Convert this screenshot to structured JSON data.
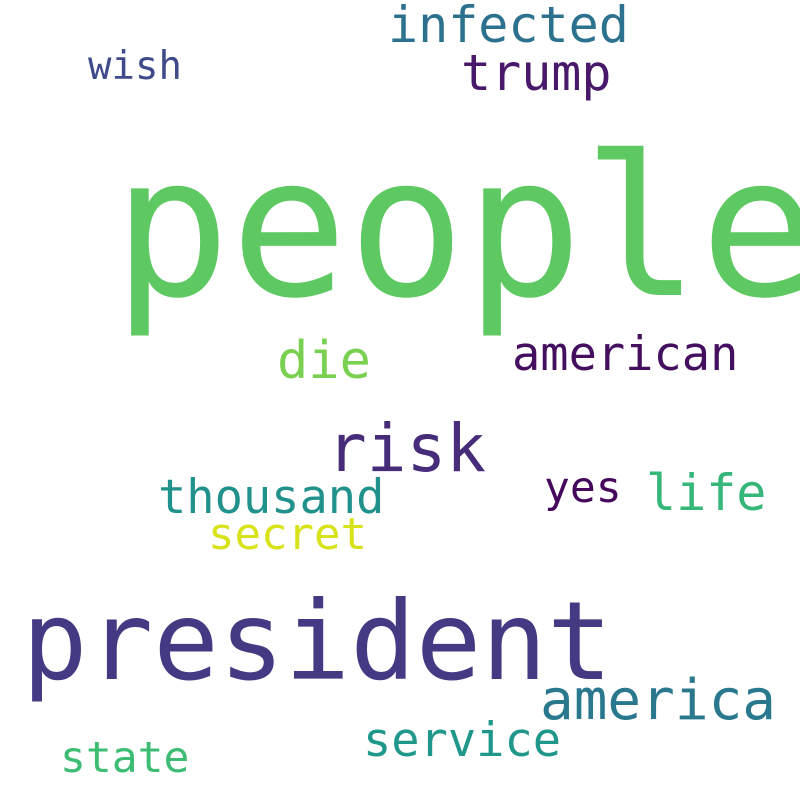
{
  "words": [
    {
      "key": "people",
      "text": "people",
      "color": "#5ec962"
    },
    {
      "key": "president",
      "text": "president",
      "color": "#443983"
    },
    {
      "key": "risk",
      "text": "risk",
      "color": "#472c7a"
    },
    {
      "key": "infected",
      "text": "infected",
      "color": "#2c728e"
    },
    {
      "key": "trump",
      "text": "trump",
      "color": "#48186a"
    },
    {
      "key": "american",
      "text": "american",
      "color": "#440f5e"
    },
    {
      "key": "die",
      "text": "die",
      "color": "#7ad151"
    },
    {
      "key": "life",
      "text": "life",
      "color": "#35b779"
    },
    {
      "key": "yes",
      "text": "yes",
      "color": "#46085c"
    },
    {
      "key": "thousand",
      "text": "thousand",
      "color": "#21918c"
    },
    {
      "key": "secret",
      "text": "secret",
      "color": "#d8e219"
    },
    {
      "key": "america",
      "text": "america",
      "color": "#2a788e"
    },
    {
      "key": "service",
      "text": "service",
      "color": "#1f978b"
    },
    {
      "key": "state",
      "text": "state",
      "color": "#3dbc74"
    },
    {
      "key": "wish",
      "text": "wish",
      "color": "#3e4a89"
    }
  ]
}
